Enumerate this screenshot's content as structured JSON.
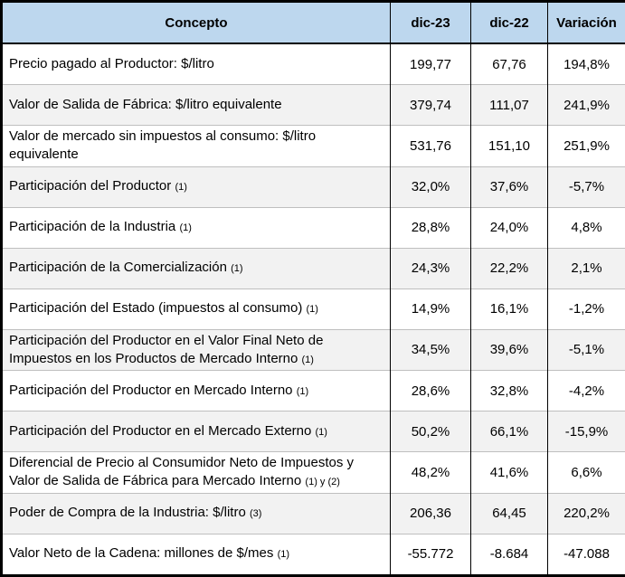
{
  "chart_data": {
    "type": "table",
    "columns": [
      "Concepto",
      "dic-23",
      "dic-22",
      "Variación"
    ],
    "rows": [
      {
        "concepto": "Precio pagado al Productor: $/litro",
        "dic23": "199,77",
        "dic22": "67,76",
        "variacion": "194,8%"
      },
      {
        "concepto": "Valor de Salida de Fábrica: $/litro equivalente",
        "dic23": "379,74",
        "dic22": "111,07",
        "variacion": "241,9%"
      },
      {
        "concepto": "Valor de mercado sin impuestos al consumo: $/litro equivalente",
        "dic23": "531,76",
        "dic22": "151,10",
        "variacion": "251,9%"
      },
      {
        "concepto": "Participación del Productor",
        "note": "(1)",
        "dic23": "32,0%",
        "dic22": "37,6%",
        "variacion": "-5,7%"
      },
      {
        "concepto": "Participación de la Industria",
        "note": "(1)",
        "dic23": "28,8%",
        "dic22": "24,0%",
        "variacion": "4,8%"
      },
      {
        "concepto": "Participación de la Comercialización",
        "note": "(1)",
        "dic23": "24,3%",
        "dic22": "22,2%",
        "variacion": "2,1%"
      },
      {
        "concepto": "Participación del Estado (impuestos al consumo)",
        "note": "(1)",
        "dic23": "14,9%",
        "dic22": "16,1%",
        "variacion": "-1,2%"
      },
      {
        "concepto": "Participación del Productor en el Valor Final Neto de Impuestos en los Productos de Mercado Interno",
        "note": "(1)",
        "dic23": "34,5%",
        "dic22": "39,6%",
        "variacion": "-5,1%"
      },
      {
        "concepto": "Participación del Productor en Mercado Interno",
        "note": "(1)",
        "dic23": "28,6%",
        "dic22": "32,8%",
        "variacion": "-4,2%"
      },
      {
        "concepto": "Participación del Productor en el Mercado Externo",
        "note": "(1)",
        "dic23": "50,2%",
        "dic22": "66,1%",
        "variacion": "-15,9%"
      },
      {
        "concepto": "Diferencial de Precio al Consumidor Neto de Impuestos y Valor de Salida de Fábrica para Mercado Interno",
        "note": "(1) y (2)",
        "dic23": "48,2%",
        "dic22": "41,6%",
        "variacion": "6,6%"
      },
      {
        "concepto": "Poder de Compra de la Industria: $/litro",
        "note": "(3)",
        "dic23": "206,36",
        "dic22": "64,45",
        "variacion": "220,2%"
      },
      {
        "concepto": "Valor Neto de la Cadena: millones de $/mes",
        "note": "(1)",
        "dic23": "-55.772",
        "dic22": "-8.684",
        "variacion": "-47.088"
      }
    ]
  },
  "colors": {
    "header_bg": "#BDD7EE",
    "alt_row_bg": "#F2F2F2",
    "border": "#000000",
    "row_line": "#BFBFBF"
  }
}
